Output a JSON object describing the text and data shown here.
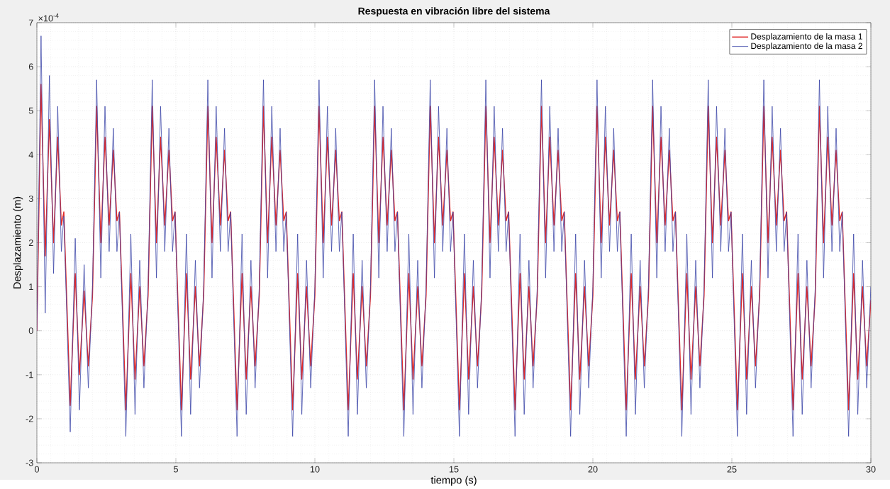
{
  "chart_data": {
    "type": "line",
    "title": "Respuesta en vibración libre del sistema",
    "xlabel": "tiempo (s)",
    "ylabel": "Desplazamiento (m)",
    "annotations": [
      "×10$^{-4}$"
    ],
    "x": [
      0,
      0.15,
      0.3,
      0.45,
      0.6,
      0.75,
      0.88,
      0.97,
      1.2,
      1.38,
      1.53,
      1.7,
      1.85,
      2,
      2.15,
      2.3,
      2.45,
      2.6,
      2.75,
      2.88,
      2.97,
      3.2,
      3.38,
      3.53,
      3.7,
      3.85,
      4,
      4.15,
      4.3,
      4.45,
      4.6,
      4.75,
      4.88,
      4.97,
      5.2,
      5.38,
      5.53,
      5.7,
      5.85,
      6,
      6.15,
      6.3,
      6.45,
      6.6,
      6.75,
      6.88,
      6.97,
      7.2,
      7.38,
      7.53,
      7.7,
      7.85,
      8,
      8.15,
      8.3,
      8.45,
      8.6,
      8.75,
      8.88,
      8.97,
      9.2,
      9.38,
      9.53,
      9.7,
      9.85,
      10,
      10.15,
      10.3,
      10.45,
      10.6,
      10.75,
      10.88,
      10.97,
      11.2,
      11.38,
      11.53,
      11.7,
      11.85,
      12,
      12.15,
      12.3,
      12.45,
      12.6,
      12.75,
      12.88,
      12.97,
      13.2,
      13.38,
      13.53,
      13.7,
      13.85,
      14,
      14.15,
      14.3,
      14.45,
      14.6,
      14.75,
      14.88,
      14.97,
      15.2,
      15.38,
      15.53,
      15.7,
      15.85,
      16,
      16.15,
      16.3,
      16.45,
      16.6,
      16.75,
      16.88,
      16.97,
      17.2,
      17.38,
      17.53,
      17.7,
      17.85,
      18,
      18.15,
      18.3,
      18.45,
      18.6,
      18.75,
      18.88,
      18.97,
      19.2,
      19.38,
      19.53,
      19.7,
      19.85,
      20,
      20.15,
      20.3,
      20.45,
      20.6,
      20.75,
      20.88,
      20.97,
      21.2,
      21.38,
      21.53,
      21.7,
      21.85,
      22,
      22.15,
      22.3,
      22.45,
      22.6,
      22.75,
      22.88,
      22.97,
      23.2,
      23.38,
      23.53,
      23.7,
      23.85,
      24,
      24.15,
      24.3,
      24.45,
      24.6,
      24.75,
      24.88,
      24.97,
      25.2,
      25.38,
      25.53,
      25.7,
      25.85,
      26,
      26.15,
      26.3,
      26.45,
      26.6,
      26.75,
      26.88,
      26.97,
      27.2,
      27.38,
      27.53,
      27.7,
      27.85,
      28,
      28.15,
      28.3,
      28.45,
      28.6,
      28.75,
      28.88,
      28.97,
      29.2,
      29.38,
      29.53,
      29.7,
      29.85,
      30
    ],
    "series": [
      {
        "name": "Desplazamiento de la masa 1",
        "color": "#e02a2a",
        "values": [
          0,
          5.6,
          1.7,
          4.8,
          2.0,
          4.4,
          2.4,
          2.7,
          -1.7,
          1.3,
          -1.0,
          0.9,
          -0.8,
          0.8,
          5.1,
          2.0,
          4.4,
          2.4,
          4.1,
          2.5,
          2.7,
          -1.8,
          1.3,
          -1.1,
          1.0,
          -0.8,
          0.8,
          5.1,
          2.0,
          4.4,
          2.4,
          4.1,
          2.5,
          2.7,
          -1.8,
          1.3,
          -1.1,
          1.0,
          -0.8,
          0.8,
          5.1,
          2.0,
          4.4,
          2.4,
          4.1,
          2.5,
          2.7,
          -1.8,
          1.3,
          -1.1,
          1.0,
          -0.8,
          0.8,
          5.1,
          2.0,
          4.4,
          2.4,
          4.1,
          2.5,
          2.7,
          -1.8,
          1.3,
          -1.1,
          1.0,
          -0.8,
          0.8,
          5.1,
          2.0,
          4.4,
          2.4,
          4.1,
          2.5,
          2.7,
          -1.8,
          1.3,
          -1.1,
          1.0,
          -0.8,
          0.8,
          5.1,
          2.0,
          4.4,
          2.4,
          4.1,
          2.5,
          2.7,
          -1.8,
          1.3,
          -1.1,
          1.0,
          -0.8,
          0.8,
          5.1,
          2.0,
          4.4,
          2.4,
          4.1,
          2.5,
          2.7,
          -1.8,
          1.3,
          -1.1,
          1.0,
          -0.8,
          0.8,
          5.1,
          2.0,
          4.4,
          2.4,
          4.1,
          2.5,
          2.7,
          -1.8,
          1.3,
          -1.1,
          1.0,
          -0.8,
          0.8,
          5.1,
          2.0,
          4.4,
          2.4,
          4.1,
          2.5,
          2.7,
          -1.8,
          1.3,
          -1.1,
          1.0,
          -0.8,
          0.8,
          5.1,
          2.0,
          4.4,
          2.4,
          4.1,
          2.5,
          2.7,
          -1.8,
          1.3,
          -1.1,
          1.0,
          -0.8,
          0.8,
          5.1,
          2.0,
          4.4,
          2.4,
          4.1,
          2.5,
          2.7,
          -1.8,
          1.3,
          -1.1,
          1.0,
          -0.8,
          0.8,
          5.1,
          2.0,
          4.4,
          2.4,
          4.1,
          2.5,
          2.7,
          -1.8,
          1.3,
          -1.1,
          1.0,
          -0.8,
          0.8,
          5.1,
          2.0,
          4.4,
          2.4,
          4.1,
          2.5,
          2.7,
          -1.8,
          1.3,
          -1.1,
          1.0,
          -0.8,
          0.8,
          5.1,
          2.0,
          4.4,
          2.4,
          4.1,
          2.5,
          2.7,
          -1.8,
          1.3,
          -1.1,
          1.0,
          -0.8,
          0.7
        ]
      },
      {
        "name": "Desplazamiento de la masa 2",
        "color": "#3c46a8",
        "values": [
          0,
          6.7,
          0.4,
          5.8,
          1.3,
          5.1,
          1.8,
          2.6,
          -2.3,
          2.1,
          -1.8,
          1.5,
          -1.3,
          1.0,
          5.7,
          1.2,
          5.1,
          1.8,
          4.6,
          1.8,
          2.7,
          -2.4,
          2.2,
          -1.9,
          1.6,
          -1.3,
          1.0,
          5.7,
          1.2,
          5.1,
          1.8,
          4.6,
          1.8,
          2.7,
          -2.4,
          2.2,
          -1.9,
          1.6,
          -1.3,
          1.0,
          5.7,
          1.2,
          5.1,
          1.8,
          4.6,
          1.8,
          2.7,
          -2.4,
          2.2,
          -1.9,
          1.6,
          -1.3,
          1.0,
          5.7,
          1.2,
          5.1,
          1.8,
          4.6,
          1.8,
          2.7,
          -2.4,
          2.2,
          -1.9,
          1.6,
          -1.3,
          1.0,
          5.7,
          1.2,
          5.1,
          1.8,
          4.6,
          1.8,
          2.7,
          -2.4,
          2.2,
          -1.9,
          1.6,
          -1.3,
          1.0,
          5.7,
          1.2,
          5.1,
          1.8,
          4.6,
          1.8,
          2.7,
          -2.4,
          2.2,
          -1.9,
          1.6,
          -1.3,
          1.0,
          5.7,
          1.2,
          5.1,
          1.8,
          4.6,
          1.8,
          2.7,
          -2.4,
          2.2,
          -1.9,
          1.6,
          -1.3,
          1.0,
          5.7,
          1.2,
          5.1,
          1.8,
          4.6,
          1.8,
          2.7,
          -2.4,
          2.2,
          -1.9,
          1.6,
          -1.3,
          1.0,
          5.7,
          1.2,
          5.1,
          1.8,
          4.6,
          1.8,
          2.7,
          -2.4,
          2.2,
          -1.9,
          1.6,
          -1.3,
          1.0,
          5.7,
          1.2,
          5.1,
          1.8,
          4.6,
          1.8,
          2.7,
          -2.4,
          2.2,
          -1.9,
          1.6,
          -1.3,
          1.0,
          5.7,
          1.2,
          5.1,
          1.8,
          4.6,
          1.8,
          2.7,
          -2.4,
          2.2,
          -1.9,
          1.6,
          -1.3,
          1.0,
          5.7,
          1.2,
          5.1,
          1.8,
          4.6,
          1.8,
          2.7,
          -2.4,
          2.2,
          -1.9,
          1.6,
          -1.3,
          1.0,
          5.7,
          1.2,
          5.1,
          1.8,
          4.6,
          1.8,
          2.7,
          -2.4,
          2.2,
          -1.9,
          1.6,
          -1.3,
          1.0,
          5.7,
          1.2,
          5.1,
          1.8,
          4.6,
          1.8,
          2.7,
          -2.4,
          2.2,
          -1.9,
          1.6,
          -1.3,
          1.0
        ]
      }
    ],
    "xlim": [
      0,
      30
    ],
    "ylim": [
      -3,
      7
    ],
    "xticks": [
      0,
      5,
      10,
      15,
      20,
      25,
      30
    ],
    "yticks": [
      -3,
      -2,
      -1,
      0,
      1,
      2,
      3,
      4,
      5,
      6,
      7
    ],
    "grid": true,
    "legend": "top right",
    "marker": "none",
    "line_style": "solid"
  }
}
